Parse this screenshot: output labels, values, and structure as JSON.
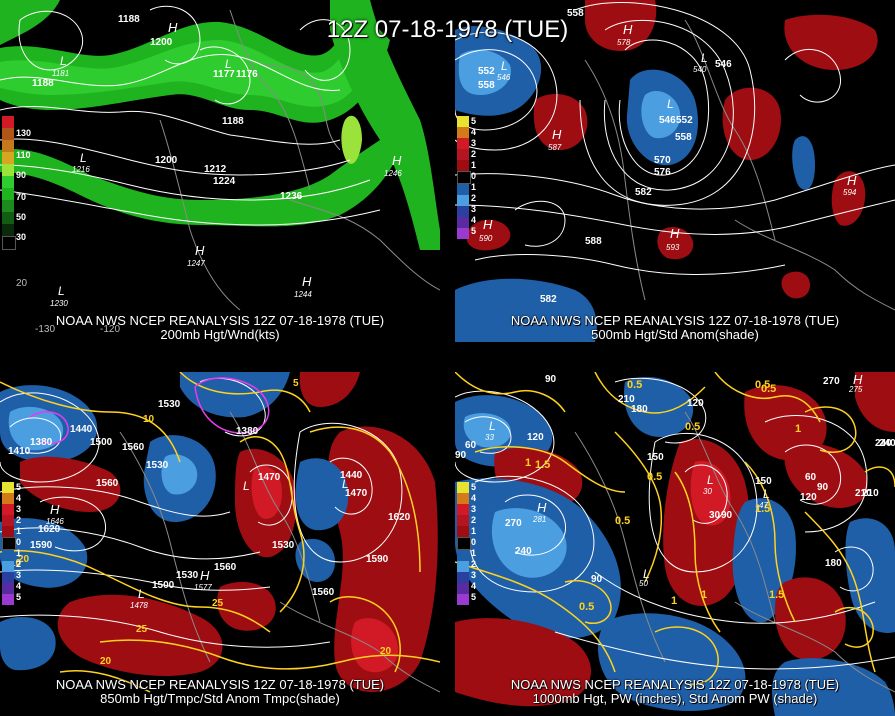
{
  "title": "12Z 07-18-1978 (TUE)",
  "colors": {
    "jet_light": "#1fb31f",
    "jet_mid": "#2ecc2e",
    "jet_strong": "#9be23a",
    "anom_pos": "#9e0d12",
    "anom_pos_strong": "#d11a26",
    "anom_neg": "#1e5fa8",
    "anom_neg_strong": "#4b9ee0",
    "contour": "#ffffff",
    "temp_contour": "#ffd21f",
    "cold_contour": "#e63cf0",
    "background": "#000000"
  },
  "panels": [
    {
      "id": "p200",
      "source": "NOAA NWS NCEP REANALYSIS 12Z 07-18-1978 (TUE)",
      "field": "200mb Hgt/Wnd(kts)",
      "legend": [
        "130",
        "110",
        "90",
        "70",
        "50",
        "30"
      ],
      "contour_labels": [
        "1188",
        "1200",
        "1188",
        "1177",
        "1176",
        "1188",
        "1200",
        "1212",
        "1224",
        "1236",
        "1188"
      ],
      "extrema": [
        {
          "type": "H",
          "value": "1246"
        },
        {
          "type": "H",
          "value": "1247"
        },
        {
          "type": "H",
          "value": "1244"
        },
        {
          "type": "L",
          "value": "1181"
        },
        {
          "type": "L",
          "value": "1216"
        },
        {
          "type": "L",
          "value": "1177"
        },
        {
          "type": "L",
          "value": "1230"
        }
      ],
      "axis_labels": [
        "-130",
        "-120",
        "20"
      ]
    },
    {
      "id": "p500",
      "source": "NOAA NWS NCEP REANALYSIS 12Z 07-18-1978 (TUE)",
      "field": "500mb Hgt/Std Anom(shade)",
      "legend": [
        "5",
        "4",
        "3",
        "2",
        "1",
        "0",
        "1",
        "2",
        "3",
        "4",
        "5"
      ],
      "contour_labels": [
        "558",
        "552",
        "558",
        "546",
        "552",
        "570",
        "576",
        "582",
        "588",
        "582",
        "546",
        "558"
      ],
      "extrema": [
        {
          "type": "H",
          "value": "587"
        },
        {
          "type": "H",
          "value": "593"
        },
        {
          "type": "H",
          "value": "594"
        },
        {
          "type": "H",
          "value": "590"
        },
        {
          "type": "H",
          "value": "578"
        },
        {
          "type": "L",
          "value": "546"
        },
        {
          "type": "L",
          "value": "540"
        },
        {
          "type": "L",
          "value": "546"
        }
      ]
    },
    {
      "id": "p850",
      "source": "NOAA NWS NCEP REANALYSIS 12Z 07-18-1978 (TUE)",
      "field": "850mb Hgt/Tmpc/Std Anom Tmpc(shade)",
      "legend": [
        "5",
        "4",
        "3",
        "2",
        "1",
        "0",
        "1",
        "2",
        "3",
        "4",
        "5"
      ],
      "contour_labels": [
        "1530",
        "1380",
        "1380",
        "1410",
        "1440",
        "1500",
        "1530",
        "1560",
        "1620",
        "1590",
        "1530",
        "1500",
        "1560",
        "1590",
        "1620",
        "1560",
        "1440",
        "1470",
        "1470",
        "1530",
        "1560"
      ],
      "temp_labels": [
        "10",
        "5",
        "20",
        "25",
        "25",
        "20",
        "20",
        "10"
      ],
      "extrema": [
        {
          "type": "H",
          "value": "1646"
        },
        {
          "type": "H",
          "value": "1577"
        },
        {
          "type": "L",
          "value": "1478"
        },
        {
          "type": "L",
          "value": "1441"
        }
      ]
    },
    {
      "id": "p1000",
      "source": "NOAA NWS NCEP REANALYSIS 12Z 07-18-1978 (TUE)",
      "field": "1000mb Hgt, PW (inches), Std Anom PW (shade)",
      "legend": [
        "5",
        "4",
        "3",
        "2",
        "1",
        "0",
        "1",
        "2",
        "3",
        "4",
        "5"
      ],
      "contour_labels": [
        "90",
        "210",
        "180",
        "120",
        "270",
        "240",
        "60",
        "90",
        "120",
        "150",
        "210",
        "240",
        "270",
        "30",
        "90",
        "150",
        "90",
        "180",
        "60",
        "90",
        "120",
        "210",
        "240"
      ],
      "pw_labels": [
        "0.5",
        "0.5",
        "0.5",
        "1.5",
        "1",
        "0.5",
        "1.5",
        "0.5",
        "1",
        "1.5",
        "1",
        "0.5",
        "0.5",
        "1"
      ],
      "extrema": [
        {
          "type": "H",
          "value": "281"
        },
        {
          "type": "H",
          "value": "275"
        },
        {
          "type": "L",
          "value": "33"
        },
        {
          "type": "L",
          "value": "30"
        },
        {
          "type": "L",
          "value": "50"
        },
        {
          "type": "L",
          "value": "47"
        }
      ]
    }
  ]
}
